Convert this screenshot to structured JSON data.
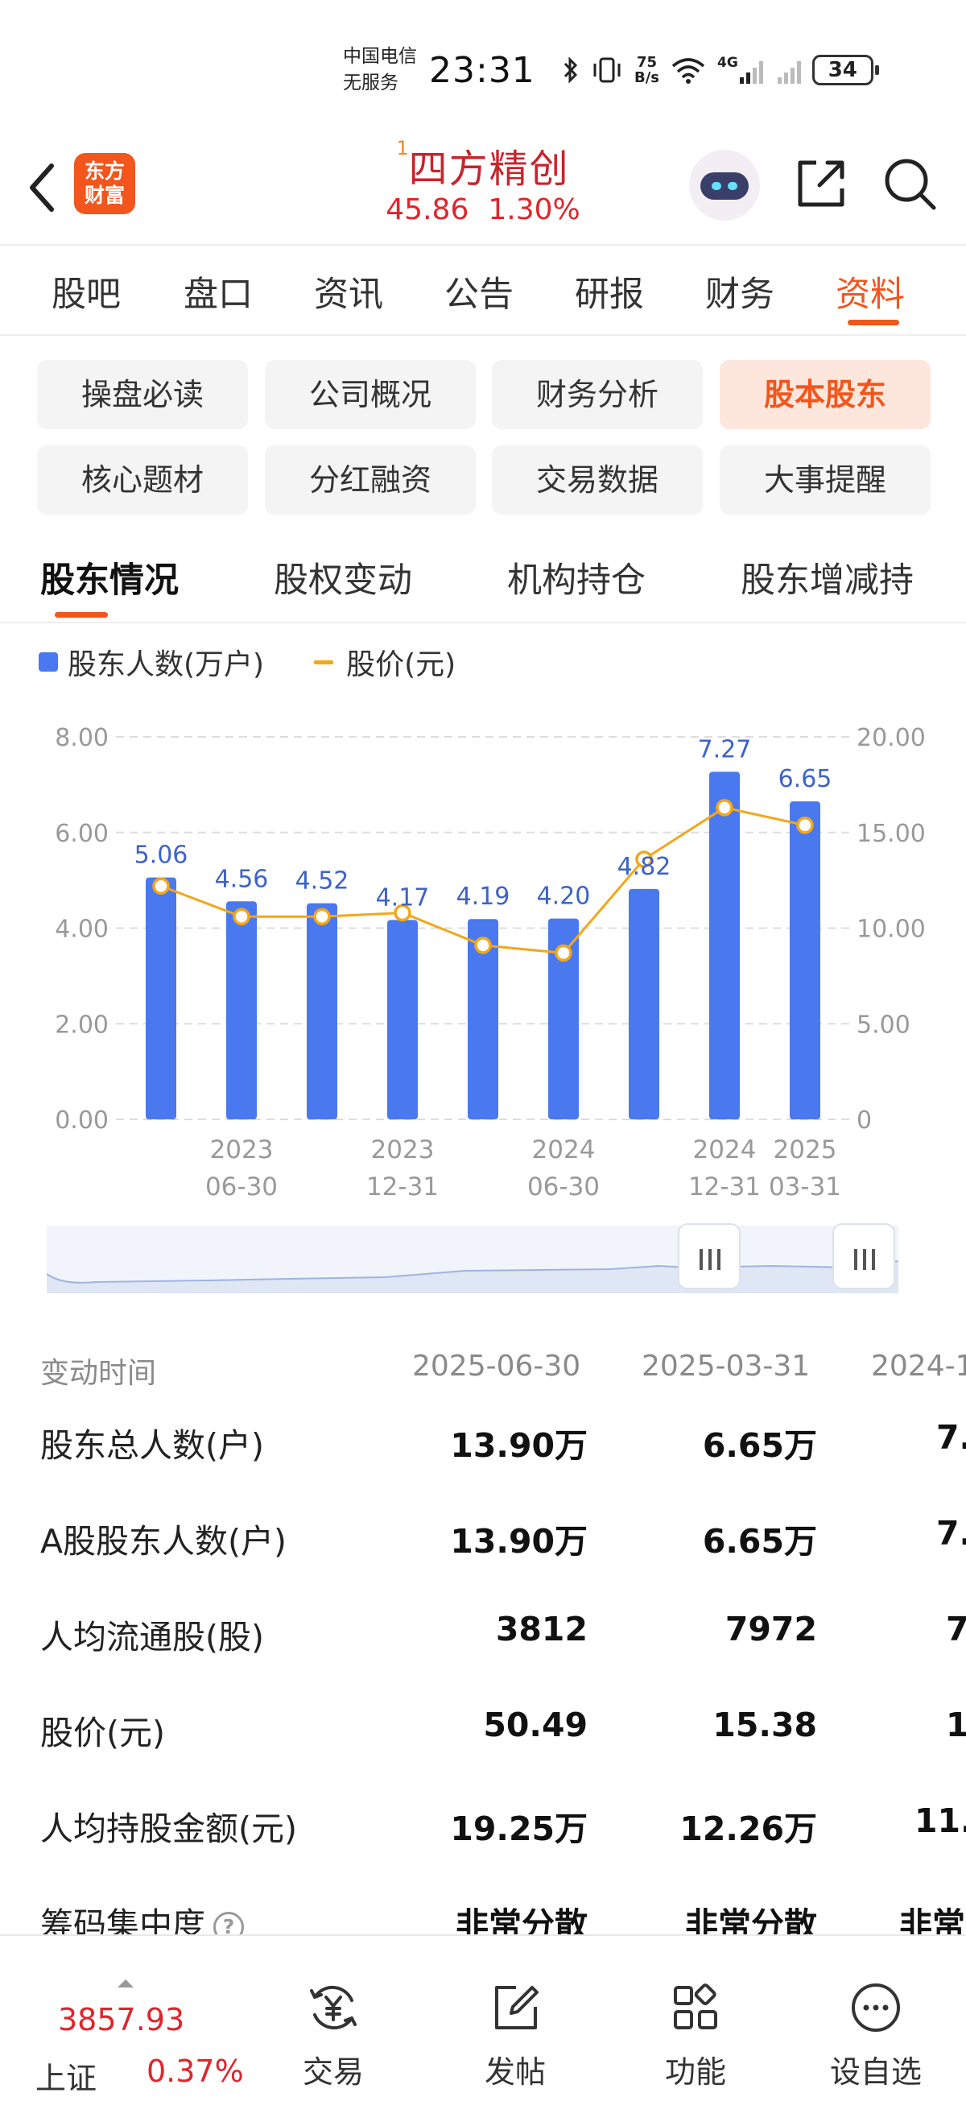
{
  "status_bar": {
    "carrier_line1": "中国电信",
    "carrier_line2": "无服务",
    "time": "23:31",
    "net_speed_value": "75",
    "net_speed_unit": "B/s",
    "network_type": "4G",
    "battery": "34"
  },
  "header": {
    "logo_line1": "东方",
    "logo_line2": "财富",
    "rank": "1",
    "stock_name": "四方精创",
    "price": "45.86",
    "change_pct": "1.30%"
  },
  "main_tabs": [
    {
      "label": "股吧"
    },
    {
      "label": "盘口"
    },
    {
      "label": "资讯"
    },
    {
      "label": "公告"
    },
    {
      "label": "研报"
    },
    {
      "label": "财务"
    },
    {
      "label": "资料",
      "active": true
    }
  ],
  "chips": [
    {
      "label": "操盘必读"
    },
    {
      "label": "公司概况"
    },
    {
      "label": "财务分析"
    },
    {
      "label": "股本股东",
      "active": true
    },
    {
      "label": "核心题材"
    },
    {
      "label": "分红融资"
    },
    {
      "label": "交易数据"
    },
    {
      "label": "大事提醒"
    }
  ],
  "sub_tabs": [
    {
      "label": "股东情况",
      "active": true
    },
    {
      "label": "股权变动"
    },
    {
      "label": "机构持仓"
    },
    {
      "label": "股东增减持"
    }
  ],
  "legend": {
    "bar_series": "股东人数(万户)",
    "line_series": "股价(元)"
  },
  "chart_data": {
    "type": "bar",
    "left_axis": {
      "min": 0,
      "max": 8,
      "ticks": [
        "0.00",
        "2.00",
        "4.00",
        "6.00",
        "8.00"
      ]
    },
    "right_axis": {
      "min": 0,
      "max": 20,
      "ticks": [
        "0",
        "5.00",
        "10.00",
        "15.00",
        "20.00"
      ]
    },
    "x_tick_labels": [
      {
        "index": 1,
        "line1": "2023",
        "line2": "06-30"
      },
      {
        "index": 3,
        "line1": "2023",
        "line2": "12-31"
      },
      {
        "index": 5,
        "line1": "2024",
        "line2": "06-30"
      },
      {
        "index": 7,
        "line1": "2024",
        "line2": "12-31"
      },
      {
        "index": 8,
        "line1": "2025",
        "line2": "03-31"
      }
    ],
    "series": [
      {
        "name": "股东人数(万户)",
        "axis": "left",
        "values": [
          5.06,
          4.56,
          4.52,
          4.17,
          4.19,
          4.2,
          4.82,
          7.27,
          6.65
        ],
        "data_labels": [
          "5.06",
          "4.56",
          "4.52",
          "4.17",
          "4.19",
          "4.20",
          "4.82",
          "7.27",
          "6.65"
        ],
        "color": "#4a78ee"
      },
      {
        "name": "股价(元)",
        "axis": "right",
        "values": [
          12.2,
          10.6,
          10.6,
          10.8,
          9.1,
          8.7,
          13.6,
          16.3,
          15.38
        ],
        "color": "#f2a71b"
      }
    ],
    "grid": true,
    "legend_position": "top-left"
  },
  "table": {
    "header_label": "变动时间",
    "columns": [
      "2025-06-30",
      "2025-03-31",
      "2024-1"
    ],
    "rows": [
      {
        "label": "股东总人数(户)",
        "values": [
          "13.90万",
          "6.65万",
          "7."
        ]
      },
      {
        "label": "A股股东人数(户)",
        "values": [
          "13.90万",
          "6.65万",
          "7."
        ]
      },
      {
        "label": "人均流通股(股)",
        "values": [
          "3812",
          "7972",
          "7"
        ]
      },
      {
        "label": "股价(元)",
        "values": [
          "50.49",
          "15.38",
          "1"
        ]
      },
      {
        "label": "人均持股金额(元)",
        "values": [
          "19.25万",
          "12.26万",
          "11."
        ]
      },
      {
        "label": "筹码集中度",
        "values": [
          "非常分散",
          "非常分散",
          "非常"
        ],
        "help_icon": "?"
      }
    ]
  },
  "bottom_bar": {
    "index_value": "3857.93",
    "index_name": "上证",
    "index_pct": "0.37%",
    "items": [
      {
        "label": "交易",
        "icon": "yuan-cycle-icon"
      },
      {
        "label": "发帖",
        "icon": "edit-icon"
      },
      {
        "label": "功能",
        "icon": "grid-icon"
      },
      {
        "label": "设自选",
        "icon": "more-circle-icon"
      }
    ]
  }
}
